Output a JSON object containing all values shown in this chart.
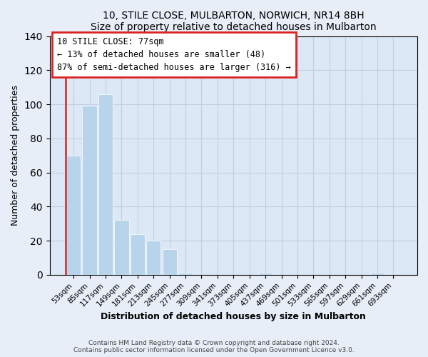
{
  "title": "10, STILE CLOSE, MULBARTON, NORWICH, NR14 8BH",
  "subtitle": "Size of property relative to detached houses in Mulbarton",
  "xlabel": "Distribution of detached houses by size in Mulbarton",
  "ylabel": "Number of detached properties",
  "categories": [
    "53sqm",
    "85sqm",
    "117sqm",
    "149sqm",
    "181sqm",
    "213sqm",
    "245sqm",
    "277sqm",
    "309sqm",
    "341sqm",
    "373sqm",
    "405sqm",
    "437sqm",
    "469sqm",
    "501sqm",
    "533sqm",
    "565sqm",
    "597sqm",
    "629sqm",
    "661sqm",
    "693sqm"
  ],
  "values": [
    70,
    99,
    106,
    32,
    24,
    20,
    15,
    1,
    0,
    0,
    0,
    0,
    1,
    0,
    0,
    0,
    0,
    0,
    0,
    1,
    0
  ],
  "bar_color": "#b8d4ea",
  "highlight_color": "#dd2222",
  "ylim": [
    0,
    140
  ],
  "yticks": [
    0,
    20,
    40,
    60,
    80,
    100,
    120,
    140
  ],
  "annotation_title": "10 STILE CLOSE: 77sqm",
  "annotation_line1": "← 13% of detached houses are smaller (48)",
  "annotation_line2": "87% of semi-detached houses are larger (316) →",
  "footer_line1": "Contains HM Land Registry data © Crown copyright and database right 2024.",
  "footer_line2": "Contains public sector information licensed under the Open Government Licence v3.0.",
  "background_color": "#e8eef8",
  "plot_bg_color": "#dce8f5",
  "grid_color": "#c0cfe0"
}
